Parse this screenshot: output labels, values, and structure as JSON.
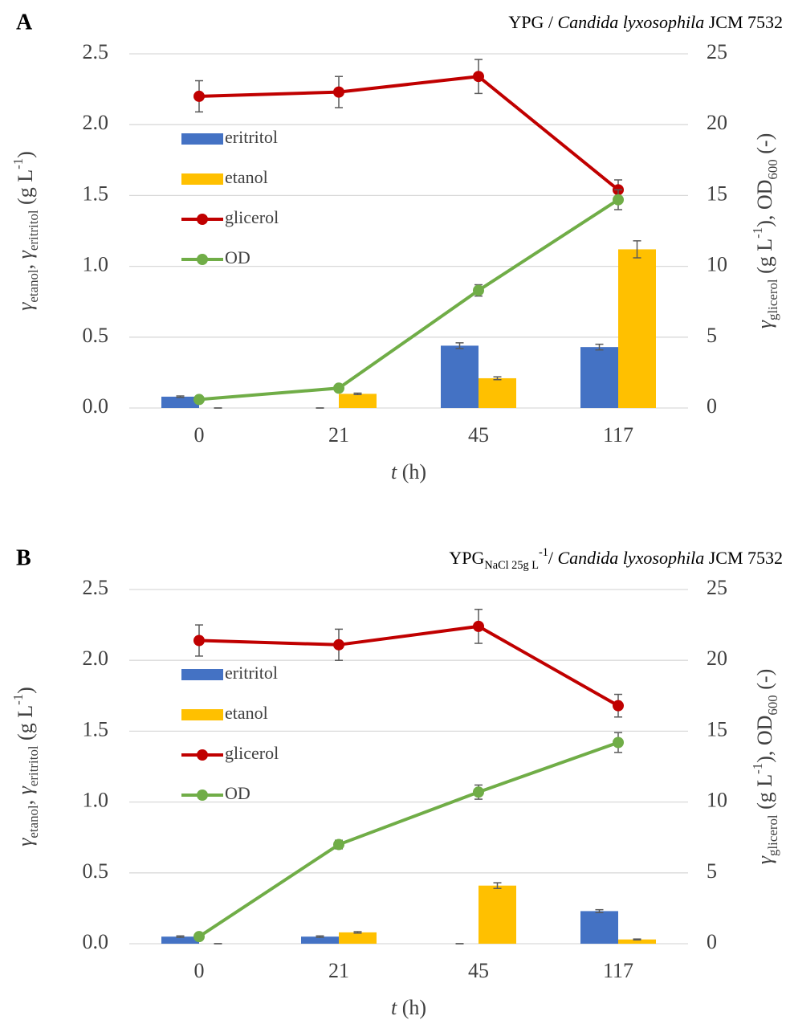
{
  "chart_data": [
    {
      "type": "combo",
      "panel": "A",
      "title": [
        {
          "text": "YPG / "
        },
        {
          "text": "Candida lyxosophila",
          "style": "italic"
        },
        {
          "text": " JCM 7532"
        }
      ],
      "x_label": [
        {
          "text": "t",
          "style": "italic"
        },
        {
          "text": " (h)"
        }
      ],
      "y_label": [
        {
          "text": "γ",
          "style": "italic"
        },
        {
          "text": "etanol",
          "style": "sub"
        },
        {
          "text": ", "
        },
        {
          "text": "γ",
          "style": "italic"
        },
        {
          "text": "eritritol",
          "style": "sub"
        },
        {
          "text": " (g L"
        },
        {
          "text": "-1",
          "style": "sup"
        },
        {
          "text": ")"
        }
      ],
      "y2_label": [
        {
          "text": "γ",
          "style": "italic"
        },
        {
          "text": "glicerol",
          "style": "sub"
        },
        {
          "text": " (g L"
        },
        {
          "text": "-1",
          "style": "sup"
        },
        {
          "text": "), OD"
        },
        {
          "text": "600",
          "style": "sub"
        },
        {
          "text": " (-)"
        }
      ],
      "categories": [
        "0",
        "21",
        "45",
        "117"
      ],
      "ylim": [
        0,
        2.5
      ],
      "yticks": [
        {
          "value": 0,
          "label": "0.0"
        },
        0.5,
        {
          "value": 1,
          "label": "1.0"
        },
        1.5,
        {
          "value": 2,
          "label": "2.0"
        },
        2.5
      ],
      "y2lim": [
        0,
        25
      ],
      "y2ticks": [
        0,
        5,
        10,
        15,
        20,
        25
      ],
      "grid": true,
      "legend": "upper left",
      "series": [
        {
          "name": "eritritol",
          "type": "bar",
          "color": "#4472c4",
          "values": [
            0.08,
            0.0,
            0.44,
            0.43
          ],
          "errors": [
            0.005,
            0,
            0.02,
            0.02
          ]
        },
        {
          "name": "etanol",
          "type": "bar",
          "color": "#ffc000",
          "values": [
            0.0,
            0.1,
            0.21,
            1.12
          ],
          "errors": [
            0,
            0.005,
            0.01,
            0.06
          ]
        },
        {
          "name": "glicerol",
          "type": "line",
          "axis": "y2",
          "color": "#c00000",
          "values": [
            22.0,
            22.3,
            23.4,
            15.4
          ],
          "errors": [
            1.1,
            1.1,
            1.2,
            0.7
          ]
        },
        {
          "name": "OD",
          "type": "line",
          "axis": "y2",
          "color": "#70ad47",
          "values": [
            0.6,
            1.4,
            8.3,
            14.7
          ],
          "errors": [
            0.1,
            0.1,
            0.4,
            0.7
          ]
        }
      ]
    },
    {
      "type": "combo",
      "panel": "B",
      "title": [
        {
          "text": "YPG"
        },
        {
          "text": "NaCl 25g L",
          "style": "sub"
        },
        {
          "text": "-1",
          "style": "sup"
        },
        {
          "text": "/ "
        },
        {
          "text": "Candida lyxosophila",
          "style": "italic"
        },
        {
          "text": " JCM 7532"
        }
      ],
      "x_label": [
        {
          "text": "t",
          "style": "italic"
        },
        {
          "text": " (h)"
        }
      ],
      "y_label": [
        {
          "text": "γ",
          "style": "italic"
        },
        {
          "text": "etanol",
          "style": "sub"
        },
        {
          "text": ", "
        },
        {
          "text": "γ",
          "style": "italic"
        },
        {
          "text": "eritritol",
          "style": "sub"
        },
        {
          "text": " (g L"
        },
        {
          "text": "-1",
          "style": "sup"
        },
        {
          "text": ")"
        }
      ],
      "y2_label": [
        {
          "text": "γ",
          "style": "italic"
        },
        {
          "text": "glicerol",
          "style": "sub"
        },
        {
          "text": " (g L"
        },
        {
          "text": "-1",
          "style": "sup"
        },
        {
          "text": "), OD"
        },
        {
          "text": "600",
          "style": "sub"
        },
        {
          "text": " (-)"
        }
      ],
      "categories": [
        "0",
        "21",
        "45",
        "117"
      ],
      "ylim": [
        0,
        2.5
      ],
      "yticks": [
        {
          "value": 0,
          "label": "0.0"
        },
        0.5,
        {
          "value": 1,
          "label": "1.0"
        },
        1.5,
        {
          "value": 2,
          "label": "2.0"
        },
        2.5
      ],
      "y2lim": [
        0,
        25
      ],
      "y2ticks": [
        0,
        5,
        10,
        15,
        20,
        25
      ],
      "grid": true,
      "legend": "upper left",
      "series": [
        {
          "name": "eritritol",
          "type": "bar",
          "color": "#4472c4",
          "values": [
            0.05,
            0.05,
            0.0,
            0.23
          ],
          "errors": [
            0.005,
            0.005,
            0,
            0.01
          ]
        },
        {
          "name": "etanol",
          "type": "bar",
          "color": "#ffc000",
          "values": [
            0.0,
            0.08,
            0.41,
            0.03
          ],
          "errors": [
            0,
            0.005,
            0.02,
            0.003
          ]
        },
        {
          "name": "glicerol",
          "type": "line",
          "axis": "y2",
          "color": "#c00000",
          "values": [
            21.4,
            21.1,
            22.4,
            16.8
          ],
          "errors": [
            1.1,
            1.1,
            1.2,
            0.8
          ]
        },
        {
          "name": "OD",
          "type": "line",
          "axis": "y2",
          "color": "#70ad47",
          "values": [
            0.5,
            7.0,
            10.7,
            14.2
          ],
          "errors": [
            0.1,
            0.3,
            0.5,
            0.7
          ]
        }
      ]
    }
  ]
}
